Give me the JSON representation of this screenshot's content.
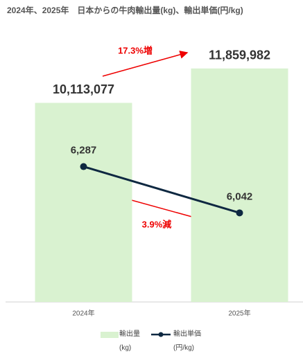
{
  "chart_data": {
    "type": "bar",
    "title": "2024年、2025年　日本からの牛肉輸出量(kg)、輸出単価(円/kg)",
    "categories": [
      "2024年",
      "2025年"
    ],
    "series": [
      {
        "name": "輸出量(kg)",
        "type": "bar",
        "color": "#d9f2d0",
        "values": [
          10113077,
          11859982
        ],
        "value_labels": [
          "10,113,077",
          "11,859,982"
        ]
      },
      {
        "name": "輸出単価(円/kg)",
        "type": "line",
        "axis": "y2",
        "color": "#0e2841",
        "values": [
          6287,
          6042
        ],
        "value_labels": [
          "6,287",
          "6,042"
        ]
      }
    ],
    "ylim": [
      0,
      14000000
    ],
    "y2lim": [
      5570,
      7030
    ],
    "annotations": [
      "17.3%増",
      "3.9%減"
    ]
  }
}
